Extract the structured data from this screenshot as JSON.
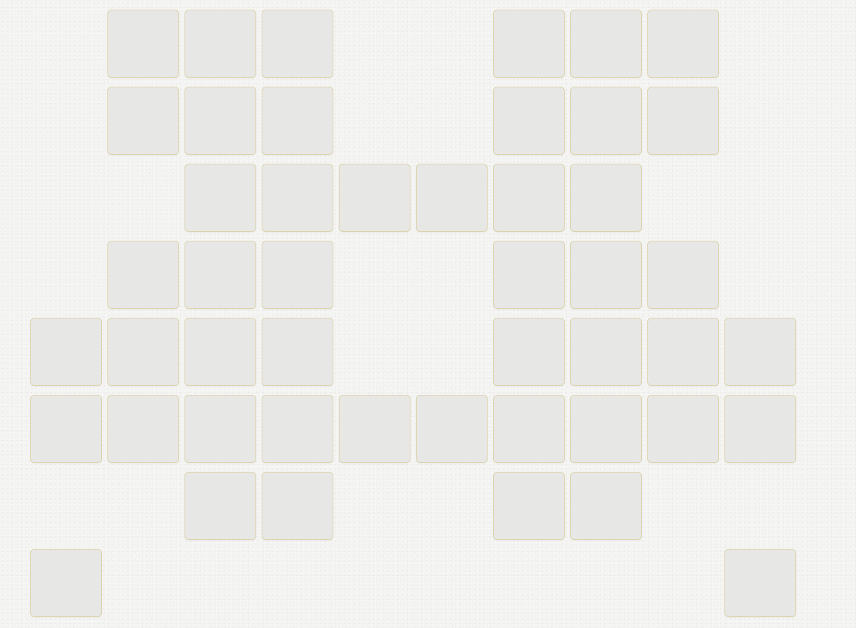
{
  "board": {
    "tile_color": "#e7e7e5",
    "tile_border_color": "#ddd3aa",
    "background_color": "#f3f3f1",
    "rows": [
      [
        0,
        1,
        1,
        1,
        0,
        0,
        1,
        1,
        1,
        0
      ],
      [
        0,
        1,
        1,
        1,
        0,
        0,
        1,
        1,
        1,
        0
      ],
      [
        0,
        0,
        1,
        1,
        1,
        1,
        1,
        1,
        0,
        0
      ],
      [
        0,
        1,
        1,
        1,
        0,
        0,
        1,
        1,
        1,
        0
      ],
      [
        1,
        1,
        1,
        1,
        0,
        0,
        1,
        1,
        1,
        1
      ],
      [
        1,
        1,
        1,
        1,
        1,
        1,
        1,
        1,
        1,
        1
      ],
      [
        0,
        0,
        1,
        1,
        0,
        0,
        1,
        1,
        0,
        0
      ],
      [
        1,
        0,
        0,
        0,
        0,
        0,
        0,
        0,
        0,
        1
      ]
    ]
  }
}
